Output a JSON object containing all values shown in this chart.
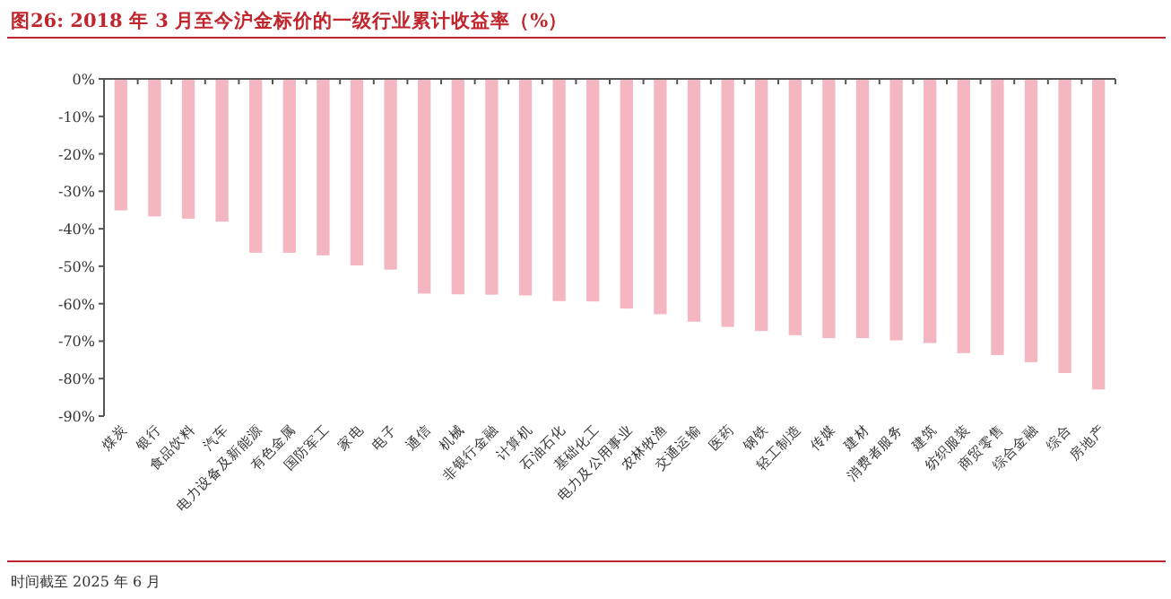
{
  "chart_data": {
    "type": "bar",
    "title": "图26:  2018 年 3 月至今沪金标价的一级行业累计收益率（%）",
    "annotations": [
      "时间截至 2025 年 6 月"
    ],
    "categories": [
      "煤炭",
      "银行",
      "食品饮料",
      "汽车",
      "电力设备及新能源",
      "有色金属",
      "国防军工",
      "家电",
      "电子",
      "通信",
      "机械",
      "非银行金融",
      "计算机",
      "石油石化",
      "基础化工",
      "电力及公用事业",
      "农林牧渔",
      "交通运输",
      "医药",
      "钢铁",
      "轻工制造",
      "传媒",
      "建材",
      "消费者服务",
      "建筑",
      "纺织服装",
      "商贸零售",
      "综合金融",
      "综合",
      "房地产"
    ],
    "values": [
      -35.1,
      -36.7,
      -37.3,
      -38.1,
      -46.4,
      -46.4,
      -47.1,
      -49.8,
      -50.9,
      -57.3,
      -57.5,
      -57.6,
      -57.8,
      -59.3,
      -59.4,
      -61.3,
      -62.8,
      -64.8,
      -66.2,
      -67.3,
      -68.4,
      -69.2,
      -69.2,
      -69.8,
      -70.5,
      -73.2,
      -73.7,
      -75.6,
      -78.5,
      -82.9
    ],
    "color": "#f4b6c0",
    "ylim": [
      -90,
      0
    ],
    "yticks": [
      {
        "value": 0,
        "label": "0%"
      },
      {
        "value": -10,
        "label": "-10%"
      },
      {
        "value": -20,
        "label": "-20%"
      },
      {
        "value": -30,
        "label": "-30%"
      },
      {
        "value": -40,
        "label": "-40%"
      },
      {
        "value": -50,
        "label": "-50%"
      },
      {
        "value": -60,
        "label": "-60%"
      },
      {
        "value": -70,
        "label": "-70%"
      },
      {
        "value": -80,
        "label": "-80%"
      },
      {
        "value": -90,
        "label": "-90%"
      }
    ],
    "grid": false
  }
}
